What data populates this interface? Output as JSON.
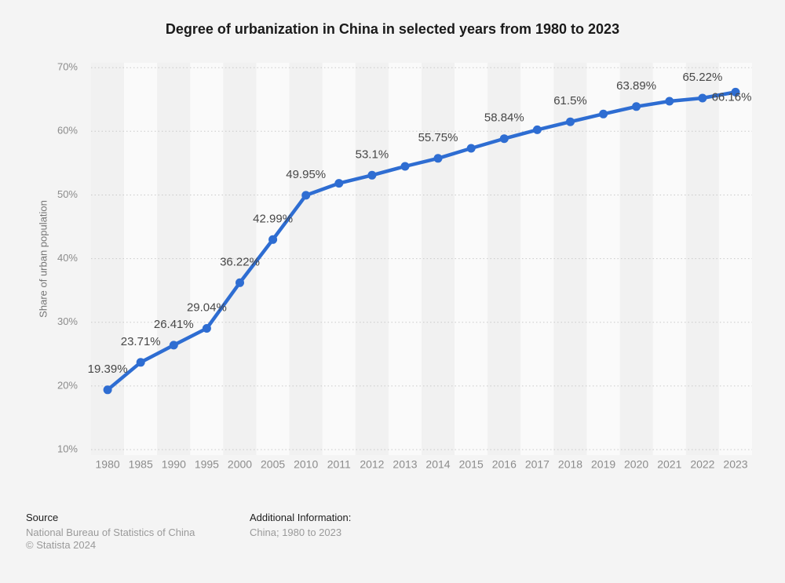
{
  "title": "Degree of urbanization in China in selected years from 1980 to 2023",
  "chart_data": {
    "type": "line",
    "title": "Degree of urbanization in China in selected years from 1980 to 2023",
    "xlabel": "",
    "ylabel": "Share of urban population",
    "categories": [
      "1980",
      "1985",
      "1990",
      "1995",
      "2000",
      "2005",
      "2010",
      "2011",
      "2012",
      "2013",
      "2014",
      "2015",
      "2016",
      "2017",
      "2018",
      "2019",
      "2020",
      "2021",
      "2022",
      "2023"
    ],
    "values": [
      19.39,
      23.71,
      26.41,
      29.04,
      36.22,
      42.99,
      49.95,
      51.83,
      53.1,
      54.49,
      55.75,
      57.33,
      58.84,
      60.24,
      61.5,
      62.71,
      63.89,
      64.72,
      65.22,
      66.16
    ],
    "point_labels": [
      "19.39%",
      "23.71%",
      "26.41%",
      "29.04%",
      "36.22%",
      "42.99%",
      "49.95%",
      null,
      "53.1%",
      null,
      "55.75%",
      null,
      "58.84%",
      null,
      "61.5%",
      null,
      "63.89%",
      null,
      "65.22%",
      "66.16%"
    ],
    "label_offsets": {
      "2023": {
        "dx": -5,
        "dy": 33
      }
    },
    "ylim": [
      10,
      70
    ],
    "y_tick_values": [
      10,
      20,
      30,
      40,
      50,
      60,
      70
    ],
    "y_tick_labels": [
      "10%",
      "20%",
      "30%",
      "40%",
      "50%",
      "60%",
      "70%"
    ],
    "grid": {
      "horizontal": true,
      "style": "dotted",
      "color": "#c9c9c9"
    },
    "legend": null,
    "colors": {
      "line": "#2e6dd2",
      "point": "#2e6dd2",
      "band_dark": "#f1f1f1",
      "band_light": "#fafafa",
      "point_label_text": "#474747",
      "tick_text": "#8c8c8c",
      "page_background": "#f4f4f4"
    }
  },
  "footer": {
    "source_label": "Source",
    "source_lines": [
      "National Bureau of Statistics of China",
      "© Statista 2024"
    ],
    "additional_label": "Additional Information:",
    "additional_value": "China; 1980 to 2023"
  }
}
